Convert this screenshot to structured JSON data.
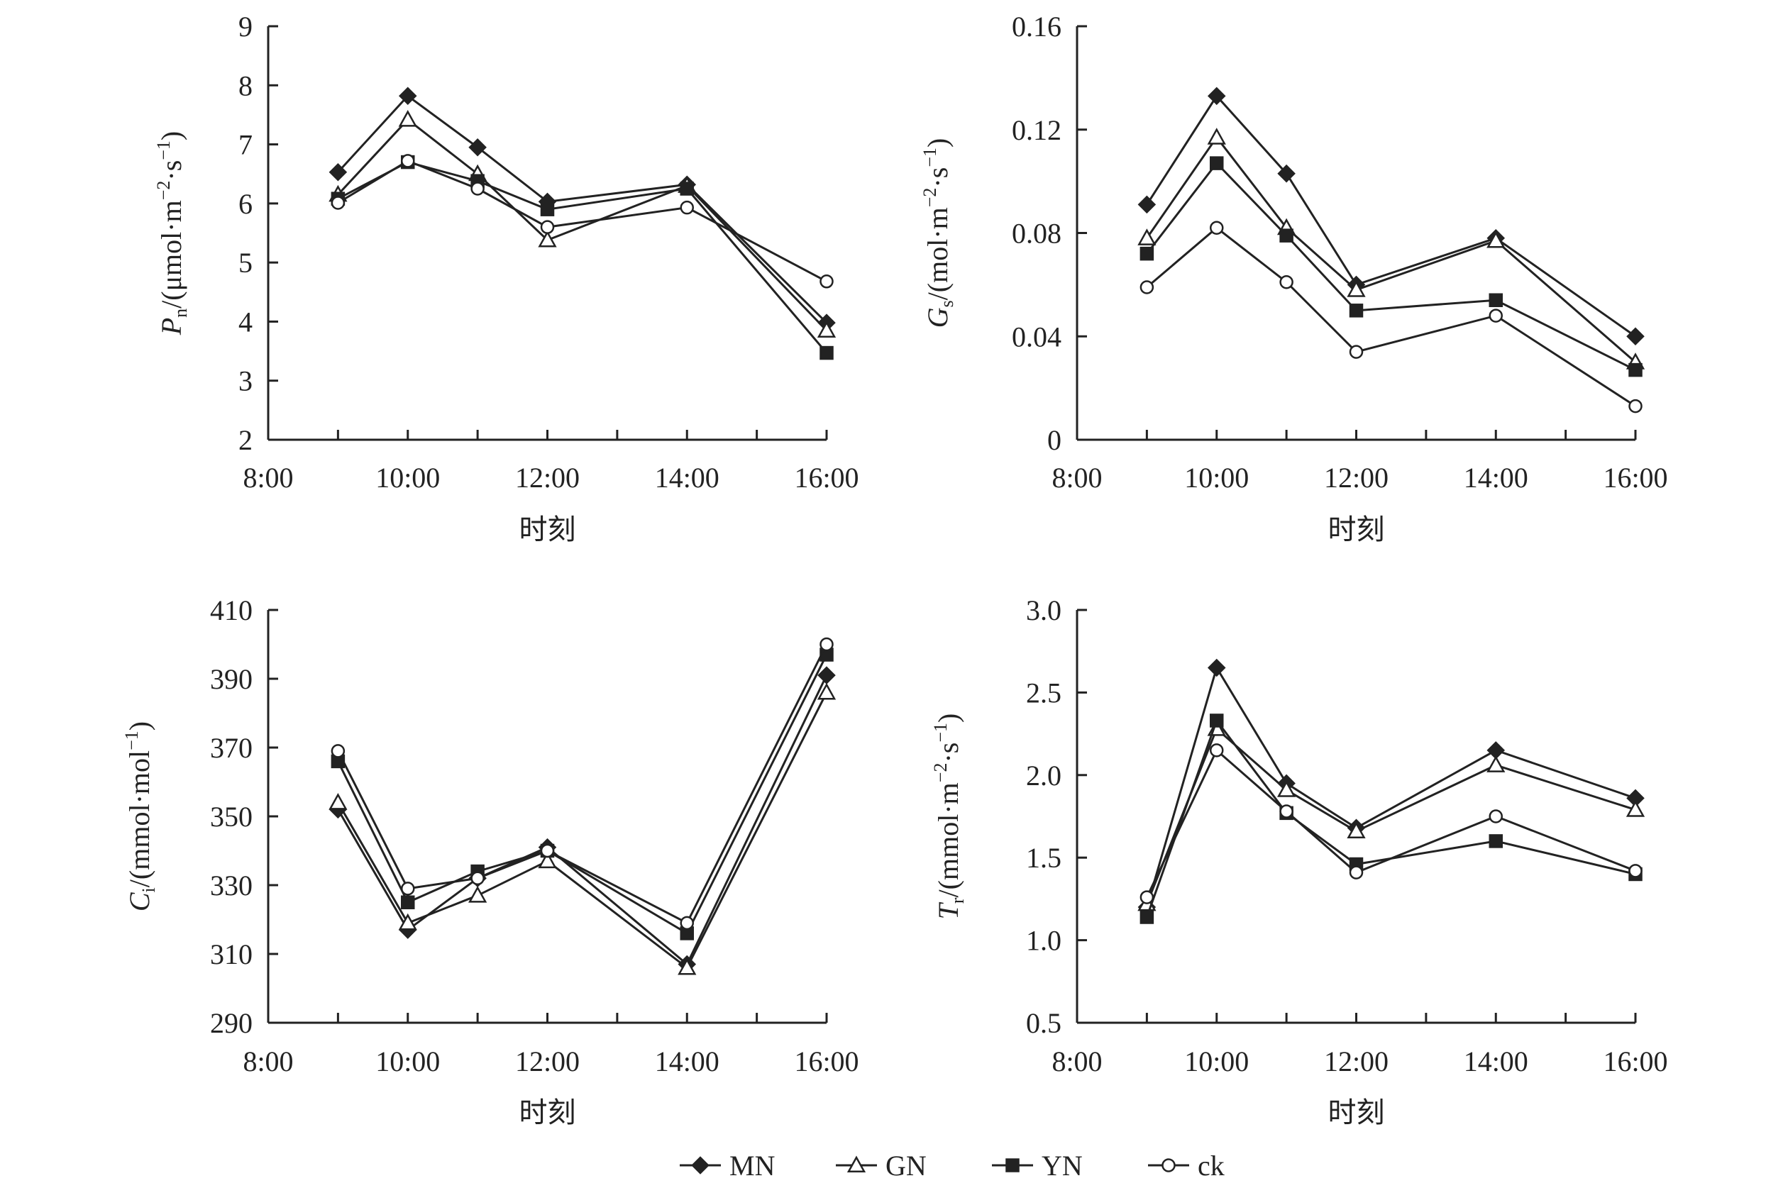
{
  "series_styles": {
    "MN": {
      "marker": "diamond",
      "fill": "#222222"
    },
    "GN": {
      "marker": "triangle",
      "fill": "#ffffff"
    },
    "YN": {
      "marker": "square",
      "fill": "#222222"
    },
    "ck": {
      "marker": "circle",
      "fill": "#ffffff"
    }
  },
  "colors": {
    "line": "#222222",
    "axis": "#222222",
    "background": "#ffffff"
  },
  "legend": {
    "placement": "bottom",
    "entries": [
      "MN",
      "GN",
      "YN",
      "ck"
    ]
  },
  "chart_data": [
    {
      "type": "line",
      "xlabel": "时刻",
      "ylabel": {
        "symbol": "P",
        "sub": "n",
        "unit": "/(μmol·m",
        "sup1": "−2",
        "mid": "·s",
        "sup2": "−1",
        "end": ")"
      },
      "x_ticks": [
        "8:00",
        "10:00",
        "12:00",
        "14:00",
        "16:00"
      ],
      "xlim": [
        8,
        16
      ],
      "ylim": [
        2,
        9
      ],
      "y_ticks": [
        "2",
        "3",
        "4",
        "5",
        "6",
        "7",
        "8",
        "9"
      ],
      "x": [
        9,
        10,
        11,
        12,
        14,
        16
      ],
      "series": [
        {
          "name": "MN",
          "values": [
            6.53,
            7.82,
            6.95,
            6.03,
            6.32,
            3.98
          ]
        },
        {
          "name": "GN",
          "values": [
            6.15,
            7.42,
            6.5,
            5.38,
            6.3,
            3.85
          ]
        },
        {
          "name": "YN",
          "values": [
            6.08,
            6.7,
            6.38,
            5.9,
            6.25,
            3.47
          ]
        },
        {
          "name": "ck",
          "values": [
            6.01,
            6.72,
            6.25,
            5.6,
            5.93,
            4.68
          ]
        }
      ]
    },
    {
      "type": "line",
      "xlabel": "时刻",
      "ylabel": {
        "symbol": "G",
        "sub": "s",
        "unit": "/(mol·m",
        "sup1": "−2",
        "mid": "·s",
        "sup2": "−1",
        "end": ")"
      },
      "x_ticks": [
        "8:00",
        "10:00",
        "12:00",
        "14:00",
        "16:00"
      ],
      "xlim": [
        8,
        16
      ],
      "ylim": [
        0,
        0.16
      ],
      "y_ticks": [
        "0",
        "0.04",
        "0.08",
        "0.12",
        "0.16"
      ],
      "x": [
        9,
        10,
        11,
        12,
        14,
        16
      ],
      "series": [
        {
          "name": "MN",
          "values": [
            0.091,
            0.133,
            0.103,
            0.06,
            0.078,
            0.04
          ]
        },
        {
          "name": "GN",
          "values": [
            0.078,
            0.117,
            0.082,
            0.058,
            0.077,
            0.03
          ]
        },
        {
          "name": "YN",
          "values": [
            0.072,
            0.107,
            0.079,
            0.05,
            0.054,
            0.027
          ]
        },
        {
          "name": "ck",
          "values": [
            0.059,
            0.082,
            0.061,
            0.034,
            0.048,
            0.013
          ]
        }
      ]
    },
    {
      "type": "line",
      "xlabel": "时刻",
      "ylabel": {
        "symbol": "C",
        "sub": "i",
        "unit": "/(mmol·mol",
        "sup1": "−1",
        "mid": "",
        "sup2": "",
        "end": ")"
      },
      "x_ticks": [
        "8:00",
        "10:00",
        "12:00",
        "14:00",
        "16:00"
      ],
      "xlim": [
        8,
        16
      ],
      "ylim": [
        290,
        410
      ],
      "y_ticks": [
        "290",
        "310",
        "330",
        "350",
        "370",
        "390",
        "410"
      ],
      "x": [
        9,
        10,
        11,
        12,
        14,
        16
      ],
      "series": [
        {
          "name": "MN",
          "values": [
            352,
            317,
            332,
            341,
            307,
            391
          ]
        },
        {
          "name": "GN",
          "values": [
            354,
            319,
            327,
            337,
            306,
            386
          ]
        },
        {
          "name": "YN",
          "values": [
            366,
            325,
            334,
            340,
            316,
            397
          ]
        },
        {
          "name": "ck",
          "values": [
            369,
            329,
            332,
            340,
            319,
            400
          ]
        }
      ]
    },
    {
      "type": "line",
      "xlabel": "时刻",
      "ylabel": {
        "symbol": "T",
        "sub": "r",
        "unit": "/(mmol·m",
        "sup1": "−2",
        "mid": "·s",
        "sup2": "−1",
        "end": ")"
      },
      "x_ticks": [
        "8:00",
        "10:00",
        "12:00",
        "14:00",
        "16:00"
      ],
      "xlim": [
        8,
        16
      ],
      "ylim": [
        0.5,
        3.0
      ],
      "y_ticks": [
        "0.5",
        "1.0",
        "1.5",
        "2.0",
        "2.5",
        "3.0"
      ],
      "x": [
        9,
        10,
        11,
        12,
        14,
        16
      ],
      "series": [
        {
          "name": "MN",
          "values": [
            1.2,
            2.65,
            1.95,
            1.68,
            2.15,
            1.86
          ]
        },
        {
          "name": "GN",
          "values": [
            1.22,
            2.28,
            1.91,
            1.66,
            2.06,
            1.79
          ]
        },
        {
          "name": "YN",
          "values": [
            1.14,
            2.33,
            1.77,
            1.46,
            1.6,
            1.4
          ]
        },
        {
          "name": "ck",
          "values": [
            1.26,
            2.15,
            1.78,
            1.41,
            1.75,
            1.42
          ]
        }
      ]
    }
  ]
}
